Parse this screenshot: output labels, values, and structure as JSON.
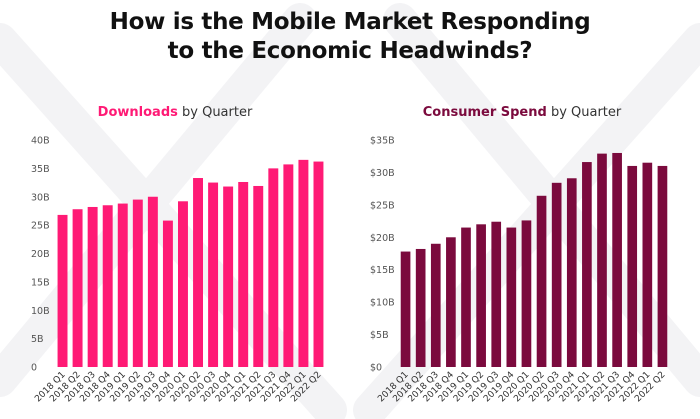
{
  "page": {
    "title_line1": "How is the Mobile Market Responding",
    "title_line2": "to the Economic Headwinds?"
  },
  "colors": {
    "downloads": "#ff1a75",
    "consumer_spend": "#7b0a3d",
    "watermark": "#f3f3f5"
  },
  "chart_data": [
    {
      "type": "bar",
      "title_highlight": "Downloads",
      "title_rest": " by Quarter",
      "categories": [
        "2018 Q1",
        "2018 Q2",
        "2018 Q3",
        "2018 Q4",
        "2019 Q1",
        "2019 Q2",
        "2019 Q3",
        "2019 Q4",
        "2020 Q1",
        "2020 Q2",
        "2020 Q3",
        "2020 Q4",
        "2021 Q1",
        "2021 Q2",
        "2021 Q3",
        "2021 Q4",
        "2022 Q1",
        "2022 Q2"
      ],
      "values": [
        26.8,
        27.8,
        28.2,
        28.5,
        28.8,
        29.5,
        30.0,
        25.8,
        29.2,
        33.3,
        32.5,
        31.8,
        32.6,
        31.9,
        35.0,
        35.7,
        36.5,
        36.2
      ],
      "ylim": [
        0,
        40
      ],
      "yticks": [
        0,
        5,
        10,
        15,
        20,
        25,
        30,
        35,
        40
      ],
      "ytick_labels": [
        "0",
        "5B",
        "10B",
        "15B",
        "20B",
        "25B",
        "30B",
        "35B",
        "40B"
      ],
      "grid": false
    },
    {
      "type": "bar",
      "title_highlight": "Consumer Spend",
      "title_rest": " by Quarter",
      "categories": [
        "2018 Q1",
        "2018 Q2",
        "2018 Q3",
        "2018 Q4",
        "2019 Q1",
        "2019 Q2",
        "2019 Q3",
        "2019 Q4",
        "2020 Q1",
        "2020 Q2",
        "2020 Q3",
        "2020 Q4",
        "2021 Q1",
        "2021 Q2",
        "2021 Q3",
        "2021 Q4",
        "2022 Q1",
        "2022 Q2"
      ],
      "values": [
        17.8,
        18.2,
        19.0,
        20.0,
        21.5,
        22.0,
        22.4,
        21.5,
        22.6,
        26.4,
        28.4,
        29.1,
        31.6,
        32.9,
        33.0,
        31.0,
        31.5,
        31.0
      ],
      "ylim": [
        0,
        35
      ],
      "yticks": [
        0,
        5,
        10,
        15,
        20,
        25,
        30,
        35
      ],
      "ytick_labels": [
        "$0",
        "$5B",
        "$10B",
        "$15B",
        "$20B",
        "$25B",
        "$30B",
        "$35B"
      ],
      "grid": false
    }
  ]
}
